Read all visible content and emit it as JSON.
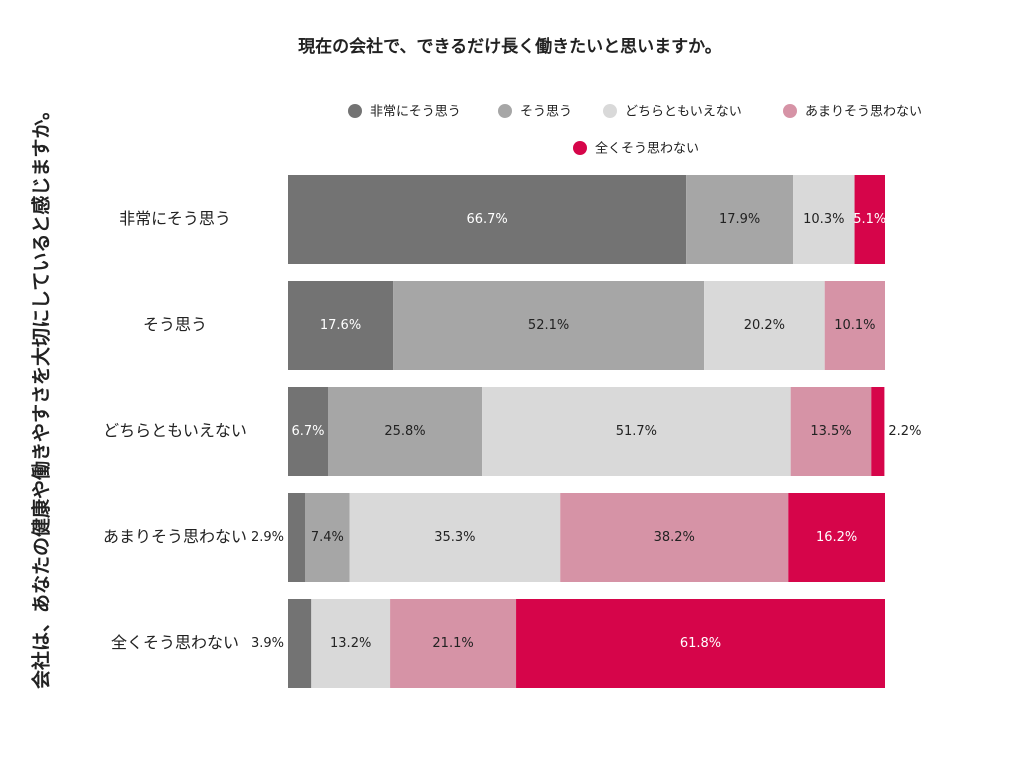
{
  "chart_data": {
    "type": "stacked-bar-horizontal",
    "title": "現在の会社で、できるだけ長く働きたいと思いますか。",
    "y_label": "会社は、あなたの健康や働きやすさを大切にしていると感じますか。",
    "categories": [
      "非常にそう思う",
      "そう思う",
      "どちらともいえない",
      "あまりそう思わない",
      "全くそう思わない"
    ],
    "xlim": [
      0,
      100
    ],
    "series": [
      {
        "name": "非常にそう思う",
        "color": "#737373",
        "values": [
          66.7,
          17.6,
          6.7,
          2.9,
          3.9
        ],
        "value_labels": [
          "66.7%",
          "17.6%",
          "6.7%",
          "2.9%",
          "3.9%"
        ]
      },
      {
        "name": "そう思う",
        "color": "#a6a6a6",
        "values": [
          17.9,
          52.1,
          25.8,
          7.4,
          null
        ],
        "value_labels": [
          "17.9%",
          "52.1%",
          "25.8%",
          "7.4%",
          null
        ]
      },
      {
        "name": "どちらともいえない",
        "color": "#d9d9d9",
        "values": [
          10.3,
          20.2,
          51.7,
          35.3,
          13.2
        ],
        "value_labels": [
          "10.3%",
          "20.2%",
          "51.7%",
          "35.3%",
          "13.2%"
        ]
      },
      {
        "name": "あまりそう思わない",
        "color": "#d693a6",
        "values": [
          null,
          10.1,
          13.5,
          38.2,
          21.1
        ],
        "value_labels": [
          null,
          "10.1%",
          "13.5%",
          "38.2%",
          "21.1%"
        ]
      },
      {
        "name": "全くそう思わない",
        "color": "#d6054a",
        "values": [
          5.1,
          null,
          2.2,
          16.2,
          61.8
        ],
        "value_labels": [
          "5.1%",
          null,
          "2.2%",
          "16.2%",
          "61.8%"
        ]
      }
    ]
  }
}
